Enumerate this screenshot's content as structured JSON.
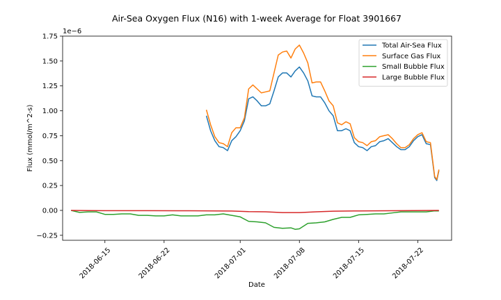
{
  "chart_data": {
    "type": "line",
    "title": "Air-Sea Oxygen Flux (N16) with 1-week Average for Float 3901667",
    "xlabel": "Date",
    "ylabel": "Flux (mmol/m^2-s)",
    "y_offset_label": "1e−6",
    "xlim": [
      "2018-06-10",
      "2018-07-26"
    ],
    "ylim": [
      -3e-07,
      1.75e-06
    ],
    "x_ticks": [
      "2018-06-15",
      "2018-06-22",
      "2018-07-01",
      "2018-07-08",
      "2018-07-15",
      "2018-07-22"
    ],
    "y_ticks": [
      {
        "value": -2.5e-07,
        "label": "−0.25"
      },
      {
        "value": 0,
        "label": "0.00"
      },
      {
        "value": 2.5e-07,
        "label": "0.25"
      },
      {
        "value": 5e-07,
        "label": "0.50"
      },
      {
        "value": 7.5e-07,
        "label": "0.75"
      },
      {
        "value": 1e-06,
        "label": "1.00"
      },
      {
        "value": 1.25e-06,
        "label": "1.25"
      },
      {
        "value": 1.5e-06,
        "label": "1.50"
      },
      {
        "value": 1.75e-06,
        "label": "1.75"
      }
    ],
    "grid": false,
    "legend_position": "top-right",
    "series": [
      {
        "name": "Total Air-Sea Flux",
        "color": "#1f77b4",
        "points": [
          [
            "2018-06-27",
            9.5e-07
          ],
          [
            "2018-06-27 12:00",
            8e-07
          ],
          [
            "2018-06-28",
            7e-07
          ],
          [
            "2018-06-28 12:00",
            6.4e-07
          ],
          [
            "2018-06-29",
            6.3e-07
          ],
          [
            "2018-06-29 12:00",
            6e-07
          ],
          [
            "2018-06-30",
            7e-07
          ],
          [
            "2018-06-30 12:00",
            7.4e-07
          ],
          [
            "2018-07-01",
            8e-07
          ],
          [
            "2018-07-01 12:00",
            9e-07
          ],
          [
            "2018-07-02",
            1.12e-06
          ],
          [
            "2018-07-02 12:00",
            1.14e-06
          ],
          [
            "2018-07-03",
            1.1e-06
          ],
          [
            "2018-07-03 12:00",
            1.05e-06
          ],
          [
            "2018-07-04",
            1.05e-06
          ],
          [
            "2018-07-04 12:00",
            1.07e-06
          ],
          [
            "2018-07-05",
            1.2e-06
          ],
          [
            "2018-07-05 12:00",
            1.34e-06
          ],
          [
            "2018-07-06",
            1.38e-06
          ],
          [
            "2018-07-06 12:00",
            1.38e-06
          ],
          [
            "2018-07-07",
            1.34e-06
          ],
          [
            "2018-07-07 12:00",
            1.4e-06
          ],
          [
            "2018-07-08",
            1.44e-06
          ],
          [
            "2018-07-08 12:00",
            1.38e-06
          ],
          [
            "2018-07-09",
            1.3e-06
          ],
          [
            "2018-07-09 12:00",
            1.15e-06
          ],
          [
            "2018-07-10",
            1.14e-06
          ],
          [
            "2018-07-10 12:00",
            1.14e-06
          ],
          [
            "2018-07-11",
            1.08e-06
          ],
          [
            "2018-07-11 12:00",
            1e-06
          ],
          [
            "2018-07-12",
            9.5e-07
          ],
          [
            "2018-07-12 12:00",
            8e-07
          ],
          [
            "2018-07-13",
            8e-07
          ],
          [
            "2018-07-13 12:00",
            8.2e-07
          ],
          [
            "2018-07-14",
            8e-07
          ],
          [
            "2018-07-14 12:00",
            6.8e-07
          ],
          [
            "2018-07-15",
            6.4e-07
          ],
          [
            "2018-07-15 12:00",
            6.3e-07
          ],
          [
            "2018-07-16",
            6e-07
          ],
          [
            "2018-07-16 12:00",
            6.4e-07
          ],
          [
            "2018-07-17",
            6.5e-07
          ],
          [
            "2018-07-17 12:00",
            6.9e-07
          ],
          [
            "2018-07-18",
            7e-07
          ],
          [
            "2018-07-18 12:00",
            7.2e-07
          ],
          [
            "2018-07-19",
            6.8e-07
          ],
          [
            "2018-07-19 12:00",
            6.4e-07
          ],
          [
            "2018-07-20",
            6.1e-07
          ],
          [
            "2018-07-20 12:00",
            6.1e-07
          ],
          [
            "2018-07-21",
            6.4e-07
          ],
          [
            "2018-07-21 12:00",
            7e-07
          ],
          [
            "2018-07-22",
            7.4e-07
          ],
          [
            "2018-07-22 12:00",
            7.6e-07
          ],
          [
            "2018-07-23",
            6.7e-07
          ],
          [
            "2018-07-23 12:00",
            6.6e-07
          ],
          [
            "2018-07-24",
            3.3e-07
          ],
          [
            "2018-07-24 06:00",
            3e-07
          ],
          [
            "2018-07-24 12:00",
            4e-07
          ]
        ]
      },
      {
        "name": "Surface Gas Flux",
        "color": "#ff7f0e",
        "points": [
          [
            "2018-06-27",
            1.01e-06
          ],
          [
            "2018-06-27 12:00",
            8.6e-07
          ],
          [
            "2018-06-28",
            7.4e-07
          ],
          [
            "2018-06-28 12:00",
            6.8e-07
          ],
          [
            "2018-06-29",
            6.7e-07
          ],
          [
            "2018-06-29 12:00",
            6.4e-07
          ],
          [
            "2018-06-30",
            7.8e-07
          ],
          [
            "2018-06-30 12:00",
            8.3e-07
          ],
          [
            "2018-07-01",
            8.3e-07
          ],
          [
            "2018-07-01 12:00",
            9.3e-07
          ],
          [
            "2018-07-02",
            1.22e-06
          ],
          [
            "2018-07-02 12:00",
            1.26e-06
          ],
          [
            "2018-07-03",
            1.22e-06
          ],
          [
            "2018-07-03 12:00",
            1.18e-06
          ],
          [
            "2018-07-04",
            1.19e-06
          ],
          [
            "2018-07-04 12:00",
            1.2e-06
          ],
          [
            "2018-07-05",
            1.38e-06
          ],
          [
            "2018-07-05 12:00",
            1.56e-06
          ],
          [
            "2018-07-06",
            1.59e-06
          ],
          [
            "2018-07-06 12:00",
            1.6e-06
          ],
          [
            "2018-07-07",
            1.53e-06
          ],
          [
            "2018-07-07 12:00",
            1.62e-06
          ],
          [
            "2018-07-08",
            1.66e-06
          ],
          [
            "2018-07-08 12:00",
            1.58e-06
          ],
          [
            "2018-07-09",
            1.48e-06
          ],
          [
            "2018-07-09 12:00",
            1.28e-06
          ],
          [
            "2018-07-10",
            1.29e-06
          ],
          [
            "2018-07-10 12:00",
            1.29e-06
          ],
          [
            "2018-07-11",
            1.2e-06
          ],
          [
            "2018-07-11 12:00",
            1.1e-06
          ],
          [
            "2018-07-12",
            1.05e-06
          ],
          [
            "2018-07-12 12:00",
            8.8e-07
          ],
          [
            "2018-07-13",
            8.6e-07
          ],
          [
            "2018-07-13 12:00",
            8.9e-07
          ],
          [
            "2018-07-14",
            8.7e-07
          ],
          [
            "2018-07-14 12:00",
            7.3e-07
          ],
          [
            "2018-07-15",
            6.9e-07
          ],
          [
            "2018-07-15 12:00",
            6.8e-07
          ],
          [
            "2018-07-16",
            6.5e-07
          ],
          [
            "2018-07-16 12:00",
            6.9e-07
          ],
          [
            "2018-07-17",
            7e-07
          ],
          [
            "2018-07-17 12:00",
            7.4e-07
          ],
          [
            "2018-07-18",
            7.5e-07
          ],
          [
            "2018-07-18 12:00",
            7.6e-07
          ],
          [
            "2018-07-19",
            7.2e-07
          ],
          [
            "2018-07-19 12:00",
            6.7e-07
          ],
          [
            "2018-07-20",
            6.3e-07
          ],
          [
            "2018-07-20 12:00",
            6.3e-07
          ],
          [
            "2018-07-21",
            6.6e-07
          ],
          [
            "2018-07-21 12:00",
            7.2e-07
          ],
          [
            "2018-07-22",
            7.6e-07
          ],
          [
            "2018-07-22 12:00",
            7.8e-07
          ],
          [
            "2018-07-23",
            6.9e-07
          ],
          [
            "2018-07-23 12:00",
            6.8e-07
          ],
          [
            "2018-07-24",
            3.4e-07
          ],
          [
            "2018-07-24 06:00",
            3.1e-07
          ],
          [
            "2018-07-24 12:00",
            4.1e-07
          ]
        ]
      },
      {
        "name": "Small Bubble Flux",
        "color": "#2ca02c",
        "points": [
          [
            "2018-06-11",
            0
          ],
          [
            "2018-06-12",
            -2e-08
          ],
          [
            "2018-06-13",
            -1.5e-08
          ],
          [
            "2018-06-14",
            -1.5e-08
          ],
          [
            "2018-06-15",
            -4e-08
          ],
          [
            "2018-06-16",
            -4e-08
          ],
          [
            "2018-06-17",
            -3.5e-08
          ],
          [
            "2018-06-18",
            -3.5e-08
          ],
          [
            "2018-06-19",
            -5e-08
          ],
          [
            "2018-06-20",
            -5e-08
          ],
          [
            "2018-06-21",
            -5.5e-08
          ],
          [
            "2018-06-22",
            -5.5e-08
          ],
          [
            "2018-06-23",
            -4.5e-08
          ],
          [
            "2018-06-24",
            -5.5e-08
          ],
          [
            "2018-06-25",
            -5.5e-08
          ],
          [
            "2018-06-26",
            -5.5e-08
          ],
          [
            "2018-06-27",
            -4.5e-08
          ],
          [
            "2018-06-28",
            -4.5e-08
          ],
          [
            "2018-06-29",
            -3.5e-08
          ],
          [
            "2018-06-30",
            -5e-08
          ],
          [
            "2018-07-01",
            -6.5e-08
          ],
          [
            "2018-07-02",
            -1.1e-07
          ],
          [
            "2018-07-03",
            -1.15e-07
          ],
          [
            "2018-07-04",
            -1.25e-07
          ],
          [
            "2018-07-05",
            -1.7e-07
          ],
          [
            "2018-07-06",
            -1.8e-07
          ],
          [
            "2018-07-07",
            -1.75e-07
          ],
          [
            "2018-07-07 12:00",
            -1.9e-07
          ],
          [
            "2018-07-08",
            -1.85e-07
          ],
          [
            "2018-07-09",
            -1.3e-07
          ],
          [
            "2018-07-10",
            -1.25e-07
          ],
          [
            "2018-07-11",
            -1.15e-07
          ],
          [
            "2018-07-12",
            -9e-08
          ],
          [
            "2018-07-13",
            -7e-08
          ],
          [
            "2018-07-14",
            -7e-08
          ],
          [
            "2018-07-15",
            -4.5e-08
          ],
          [
            "2018-07-16",
            -4e-08
          ],
          [
            "2018-07-17",
            -3.5e-08
          ],
          [
            "2018-07-18",
            -3.5e-08
          ],
          [
            "2018-07-19",
            -2.5e-08
          ],
          [
            "2018-07-20",
            -1.5e-08
          ],
          [
            "2018-07-21",
            -1.5e-08
          ],
          [
            "2018-07-22",
            -1.5e-08
          ],
          [
            "2018-07-23",
            -1.5e-08
          ],
          [
            "2018-07-24",
            -5e-09
          ],
          [
            "2018-07-24 12:00",
            -5e-09
          ]
        ]
      },
      {
        "name": "Large Bubble Flux",
        "color": "#d62728",
        "points": [
          [
            "2018-06-11",
            0
          ],
          [
            "2018-06-15",
            -3e-09
          ],
          [
            "2018-06-20",
            -3e-09
          ],
          [
            "2018-06-25",
            -4e-09
          ],
          [
            "2018-06-30",
            -6e-09
          ],
          [
            "2018-07-02",
            -1.2e-08
          ],
          [
            "2018-07-04",
            -1.4e-08
          ],
          [
            "2018-07-06",
            -2.2e-08
          ],
          [
            "2018-07-08",
            -2.2e-08
          ],
          [
            "2018-07-10",
            -1.4e-08
          ],
          [
            "2018-07-12",
            -8e-09
          ],
          [
            "2018-07-15",
            -5e-09
          ],
          [
            "2018-07-20",
            -3e-09
          ],
          [
            "2018-07-24 12:00",
            0
          ]
        ]
      }
    ]
  }
}
